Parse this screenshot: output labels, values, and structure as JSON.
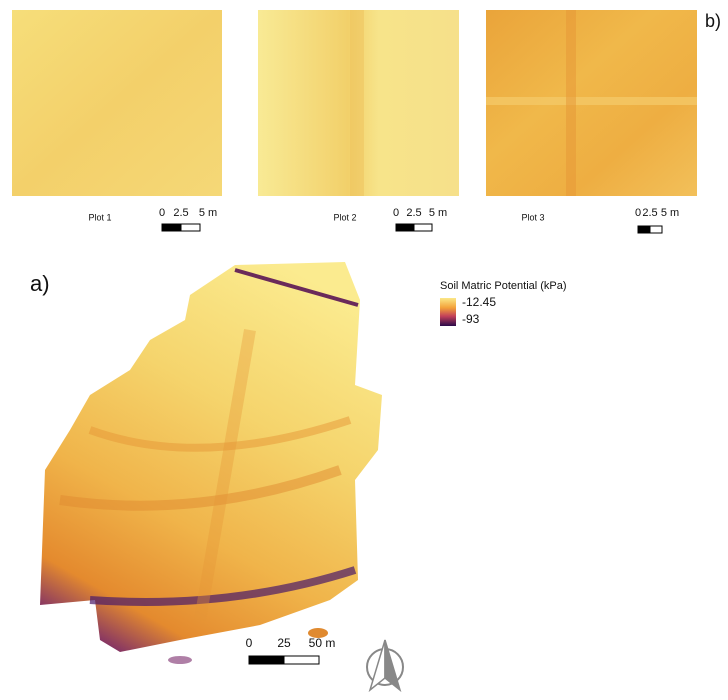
{
  "panel_b": {
    "label": "b)",
    "plots": [
      {
        "title": "Plot 1",
        "scale": [
          "0",
          "2.5",
          "5 m"
        ]
      },
      {
        "title": "Plot 2",
        "scale": [
          "0",
          "2.5",
          "5 m"
        ]
      },
      {
        "title": "Plot 3",
        "scale": [
          "0",
          "2.5",
          "5 m"
        ]
      }
    ]
  },
  "panel_a": {
    "label": "a)",
    "scale": [
      "0",
      "25",
      "50 m"
    ]
  },
  "legend": {
    "title": "Soil Matric Potential (kPa)",
    "max": -12.45,
    "min": -93
  }
}
